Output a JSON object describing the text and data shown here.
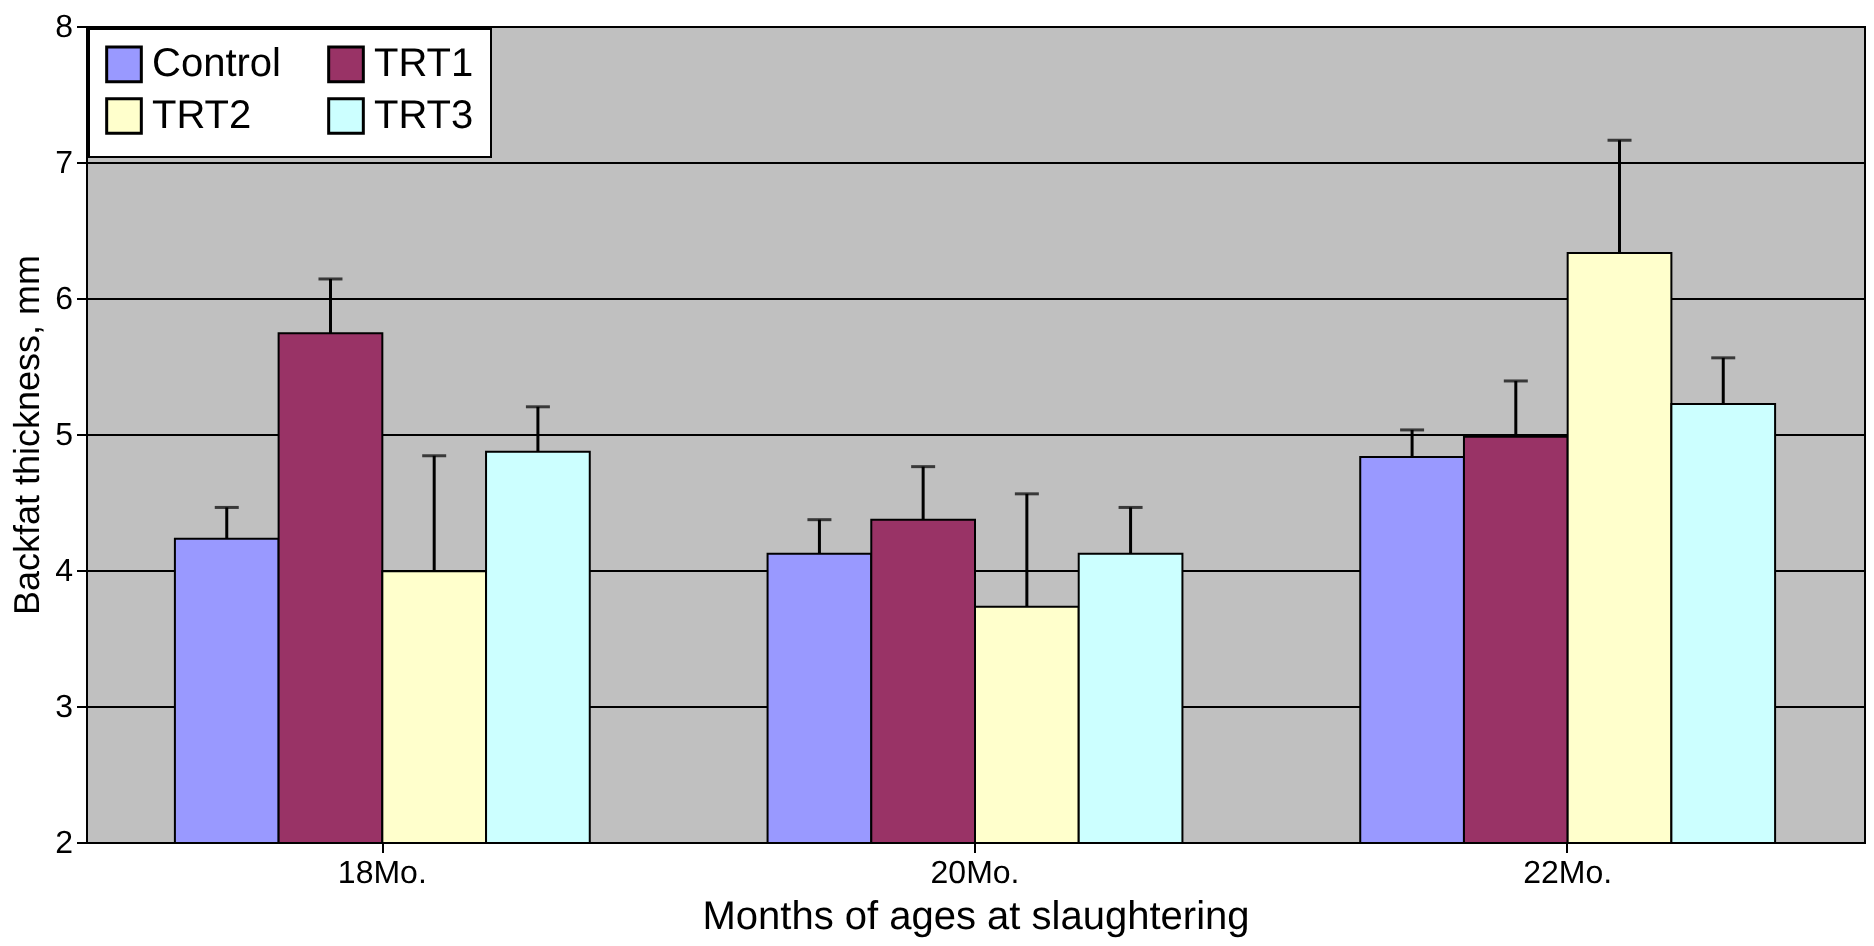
{
  "chart_data": {
    "type": "bar",
    "xlabel": "Months of ages at slaughtering",
    "ylabel": "Backfat thickness, mm",
    "categories": [
      "18Mo.",
      "20Mo.",
      "22Mo."
    ],
    "series": [
      {
        "name": "Control",
        "color": "#9999ff",
        "values": [
          4.23,
          4.12,
          4.83
        ],
        "errors": [
          [
            4.23,
            4.46
          ],
          [
            4.12,
            4.37
          ],
          [
            4.83,
            5.03
          ]
        ]
      },
      {
        "name": "TRT1",
        "color": "#993366",
        "values": [
          5.74,
          4.37,
          4.98
        ],
        "errors": [
          [
            5.74,
            6.14
          ],
          [
            4.37,
            4.76
          ],
          [
            4.98,
            5.39
          ]
        ]
      },
      {
        "name": "TRT2",
        "color": "#ffffcc",
        "values": [
          3.99,
          3.73,
          6.33
        ],
        "errors": [
          [
            3.99,
            4.84
          ],
          [
            3.73,
            4.56
          ],
          [
            6.33,
            7.16
          ]
        ]
      },
      {
        "name": "TRT3",
        "color": "#ccffff",
        "values": [
          4.87,
          4.12,
          5.22
        ],
        "errors": [
          [
            4.87,
            5.2
          ],
          [
            4.12,
            4.46
          ],
          [
            5.22,
            5.56
          ]
        ]
      }
    ],
    "ylim": [
      2,
      8
    ],
    "yticks": [
      2,
      3,
      4,
      5,
      6,
      7,
      8
    ],
    "grid": "y",
    "legend": "top left"
  }
}
